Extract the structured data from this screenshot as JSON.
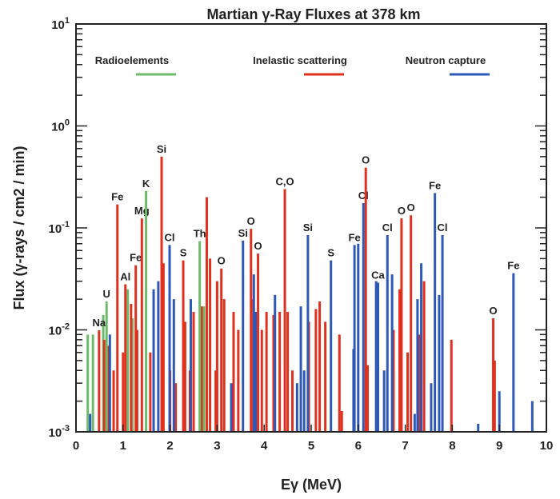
{
  "chart_data": {
    "type": "bar",
    "title": "Martian γ-Ray Fluxes at 378 km",
    "xlabel": "Eγ (MeV)",
    "ylabel": "Flux (γ-rays / cm2 / min)",
    "xlim": [
      0,
      10
    ],
    "ylim": [
      0.001,
      10
    ],
    "yscale": "log",
    "grid": false,
    "legend_placement": "top",
    "x_ticks": [
      "0",
      "1",
      "2",
      "3",
      "4",
      "5",
      "6",
      "7",
      "8",
      "9",
      "10"
    ],
    "y_ticks": [
      {
        "base": "10",
        "exp": "1",
        "value": 10
      },
      {
        "base": "10",
        "exp": "0",
        "value": 1
      },
      {
        "base": "10",
        "exp": "-1",
        "value": 0.1
      },
      {
        "base": "10",
        "exp": "-2",
        "value": 0.01
      },
      {
        "base": "10",
        "exp": "-3",
        "value": 0.001
      }
    ],
    "series": [
      {
        "name": "Radioelements",
        "color": "#6dbb6a",
        "key": "g"
      },
      {
        "name": "Inelastic scattering",
        "color": "#e0301e",
        "key": "r"
      },
      {
        "name": "Neutron capture",
        "color": "#2e58b8",
        "key": "b"
      }
    ],
    "labeled_lines": [
      {
        "label": "Na",
        "energy": 0.49,
        "flux": 0.0099,
        "series": "r"
      },
      {
        "label": "U",
        "energy": 0.65,
        "flux": 0.019,
        "series": "g"
      },
      {
        "label": "Fe",
        "energy": 0.88,
        "flux": 0.17,
        "series": "r"
      },
      {
        "label": "Al",
        "energy": 1.05,
        "flux": 0.028,
        "series": "r"
      },
      {
        "label": "Fe",
        "energy": 1.27,
        "flux": 0.043,
        "series": "r"
      },
      {
        "label": "Mg",
        "energy": 1.4,
        "flux": 0.124,
        "series": "r"
      },
      {
        "label": "K",
        "energy": 1.49,
        "flux": 0.23,
        "series": "g"
      },
      {
        "label": "Si",
        "energy": 1.82,
        "flux": 0.5,
        "series": "r"
      },
      {
        "label": "Cl",
        "energy": 1.99,
        "flux": 0.068,
        "series": "b"
      },
      {
        "label": "S",
        "energy": 2.28,
        "flux": 0.048,
        "series": "r"
      },
      {
        "label": "Th",
        "energy": 2.63,
        "flux": 0.074,
        "series": "g"
      },
      {
        "label": "O",
        "energy": 3.09,
        "flux": 0.04,
        "series": "r"
      },
      {
        "label": "Si",
        "energy": 3.55,
        "flux": 0.075,
        "series": "b"
      },
      {
        "label": "O",
        "energy": 3.72,
        "flux": 0.098,
        "series": "r"
      },
      {
        "label": "O",
        "energy": 3.87,
        "flux": 0.056,
        "series": "r"
      },
      {
        "label": "C,O",
        "energy": 4.44,
        "flux": 0.24,
        "series": "r"
      },
      {
        "label": "Si",
        "energy": 4.93,
        "flux": 0.085,
        "series": "b"
      },
      {
        "label": "S",
        "energy": 5.42,
        "flux": 0.048,
        "series": "b"
      },
      {
        "label": "Fe",
        "energy": 5.92,
        "flux": 0.068,
        "series": "b"
      },
      {
        "label": "Cl",
        "energy": 6.11,
        "flux": 0.175,
        "series": "b"
      },
      {
        "label": "O",
        "energy": 6.16,
        "flux": 0.39,
        "series": "r"
      },
      {
        "label": "Ca",
        "energy": 6.42,
        "flux": 0.029,
        "series": "b"
      },
      {
        "label": "Cl",
        "energy": 6.62,
        "flux": 0.085,
        "series": "b"
      },
      {
        "label": "O",
        "energy": 6.92,
        "flux": 0.124,
        "series": "r"
      },
      {
        "label": "O",
        "energy": 7.12,
        "flux": 0.133,
        "series": "r"
      },
      {
        "label": "Fe",
        "energy": 7.63,
        "flux": 0.22,
        "series": "b"
      },
      {
        "label": "Cl",
        "energy": 7.79,
        "flux": 0.085,
        "series": "b"
      },
      {
        "label": "O",
        "energy": 8.87,
        "flux": 0.013,
        "series": "r"
      },
      {
        "label": "Fe",
        "energy": 9.3,
        "flux": 0.036,
        "series": "b"
      }
    ],
    "unlabeled_lines": [
      [
        0.25,
        0.009,
        "g"
      ],
      [
        0.36,
        0.009,
        "g"
      ],
      [
        0.58,
        0.014,
        "g"
      ],
      [
        1.1,
        0.025,
        "g"
      ],
      [
        1.2,
        0.013,
        "g"
      ],
      [
        2.72,
        0.017,
        "g"
      ],
      [
        0.6,
        0.008,
        "r"
      ],
      [
        0.68,
        0.007,
        "r"
      ],
      [
        0.8,
        0.004,
        "r"
      ],
      [
        1.0,
        0.006,
        "r"
      ],
      [
        1.17,
        0.018,
        "r"
      ],
      [
        1.3,
        0.01,
        "r"
      ],
      [
        1.58,
        0.006,
        "r"
      ],
      [
        1.65,
        0.006,
        "r"
      ],
      [
        1.86,
        0.045,
        "r"
      ],
      [
        2.0,
        0.004,
        "r"
      ],
      [
        2.12,
        0.003,
        "r"
      ],
      [
        2.32,
        0.012,
        "r"
      ],
      [
        2.42,
        0.004,
        "r"
      ],
      [
        2.5,
        0.015,
        "r"
      ],
      [
        2.67,
        0.017,
        "r"
      ],
      [
        2.78,
        0.2,
        "r"
      ],
      [
        2.85,
        0.05,
        "r"
      ],
      [
        2.97,
        0.004,
        "r"
      ],
      [
        3.0,
        0.03,
        "r"
      ],
      [
        3.15,
        0.02,
        "r"
      ],
      [
        3.35,
        0.015,
        "r"
      ],
      [
        3.45,
        0.01,
        "r"
      ],
      [
        3.77,
        0.02,
        "r"
      ],
      [
        3.95,
        0.01,
        "r"
      ],
      [
        4.05,
        0.015,
        "r"
      ],
      [
        4.2,
        0.014,
        "r"
      ],
      [
        4.33,
        0.015,
        "r"
      ],
      [
        4.5,
        0.015,
        "r"
      ],
      [
        4.6,
        0.004,
        "r"
      ],
      [
        4.95,
        0.012,
        "r"
      ],
      [
        5.1,
        0.016,
        "r"
      ],
      [
        5.18,
        0.019,
        "r"
      ],
      [
        5.3,
        0.012,
        "r"
      ],
      [
        5.6,
        0.009,
        "r"
      ],
      [
        5.65,
        0.0016,
        "r"
      ],
      [
        6.2,
        0.0045,
        "r"
      ],
      [
        6.75,
        0.01,
        "r"
      ],
      [
        6.88,
        0.025,
        "r"
      ],
      [
        7.05,
        0.006,
        "r"
      ],
      [
        7.3,
        0.009,
        "r"
      ],
      [
        7.4,
        0.03,
        "r"
      ],
      [
        7.98,
        0.008,
        "r"
      ],
      [
        8.9,
        0.005,
        "r"
      ],
      [
        0.3,
        0.0015,
        "b"
      ],
      [
        0.72,
        0.009,
        "b"
      ],
      [
        1.65,
        0.025,
        "b"
      ],
      [
        1.75,
        0.03,
        "b"
      ],
      [
        2.08,
        0.02,
        "b"
      ],
      [
        2.44,
        0.02,
        "b"
      ],
      [
        3.3,
        0.003,
        "b"
      ],
      [
        3.78,
        0.035,
        "b"
      ],
      [
        3.82,
        0.015,
        "b"
      ],
      [
        4.23,
        0.022,
        "b"
      ],
      [
        4.7,
        0.003,
        "b"
      ],
      [
        4.78,
        0.017,
        "b"
      ],
      [
        4.85,
        0.004,
        "b"
      ],
      [
        5.9,
        0.0065,
        "b"
      ],
      [
        6.0,
        0.07,
        "b"
      ],
      [
        6.38,
        0.03,
        "b"
      ],
      [
        6.55,
        0.004,
        "b"
      ],
      [
        6.72,
        0.035,
        "b"
      ],
      [
        7.2,
        0.0015,
        "b"
      ],
      [
        7.26,
        0.02,
        "b"
      ],
      [
        7.34,
        0.045,
        "b"
      ],
      [
        7.55,
        0.003,
        "b"
      ],
      [
        7.72,
        0.022,
        "b"
      ],
      [
        8.55,
        0.0012,
        "b"
      ],
      [
        9.0,
        0.0025,
        "b"
      ],
      [
        9.7,
        0.002,
        "b"
      ]
    ]
  }
}
